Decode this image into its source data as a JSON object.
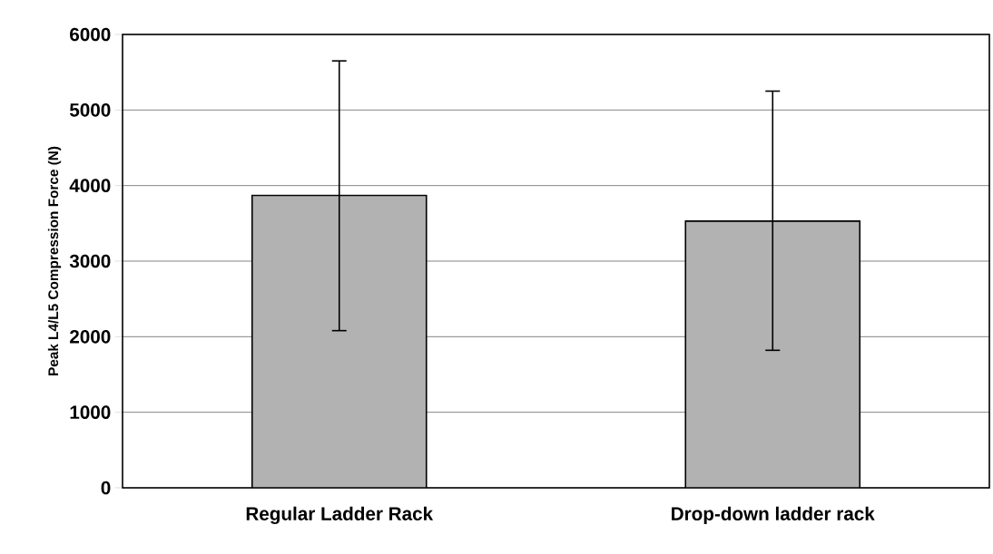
{
  "chart_data": {
    "type": "bar",
    "ylabel": "Peak L4/L5 Compression Force (N)",
    "categories": [
      "Regular Ladder Rack",
      "Drop-down ladder rack"
    ],
    "values": [
      3870,
      3530
    ],
    "errors": [
      [
        2080,
        5650
      ],
      [
        1820,
        5250
      ]
    ],
    "color": "#b2b2b2",
    "ylim": [
      0,
      6000
    ],
    "yticks": [
      0,
      1000,
      2000,
      3000,
      4000,
      5000,
      6000
    ],
    "grid": "y"
  }
}
